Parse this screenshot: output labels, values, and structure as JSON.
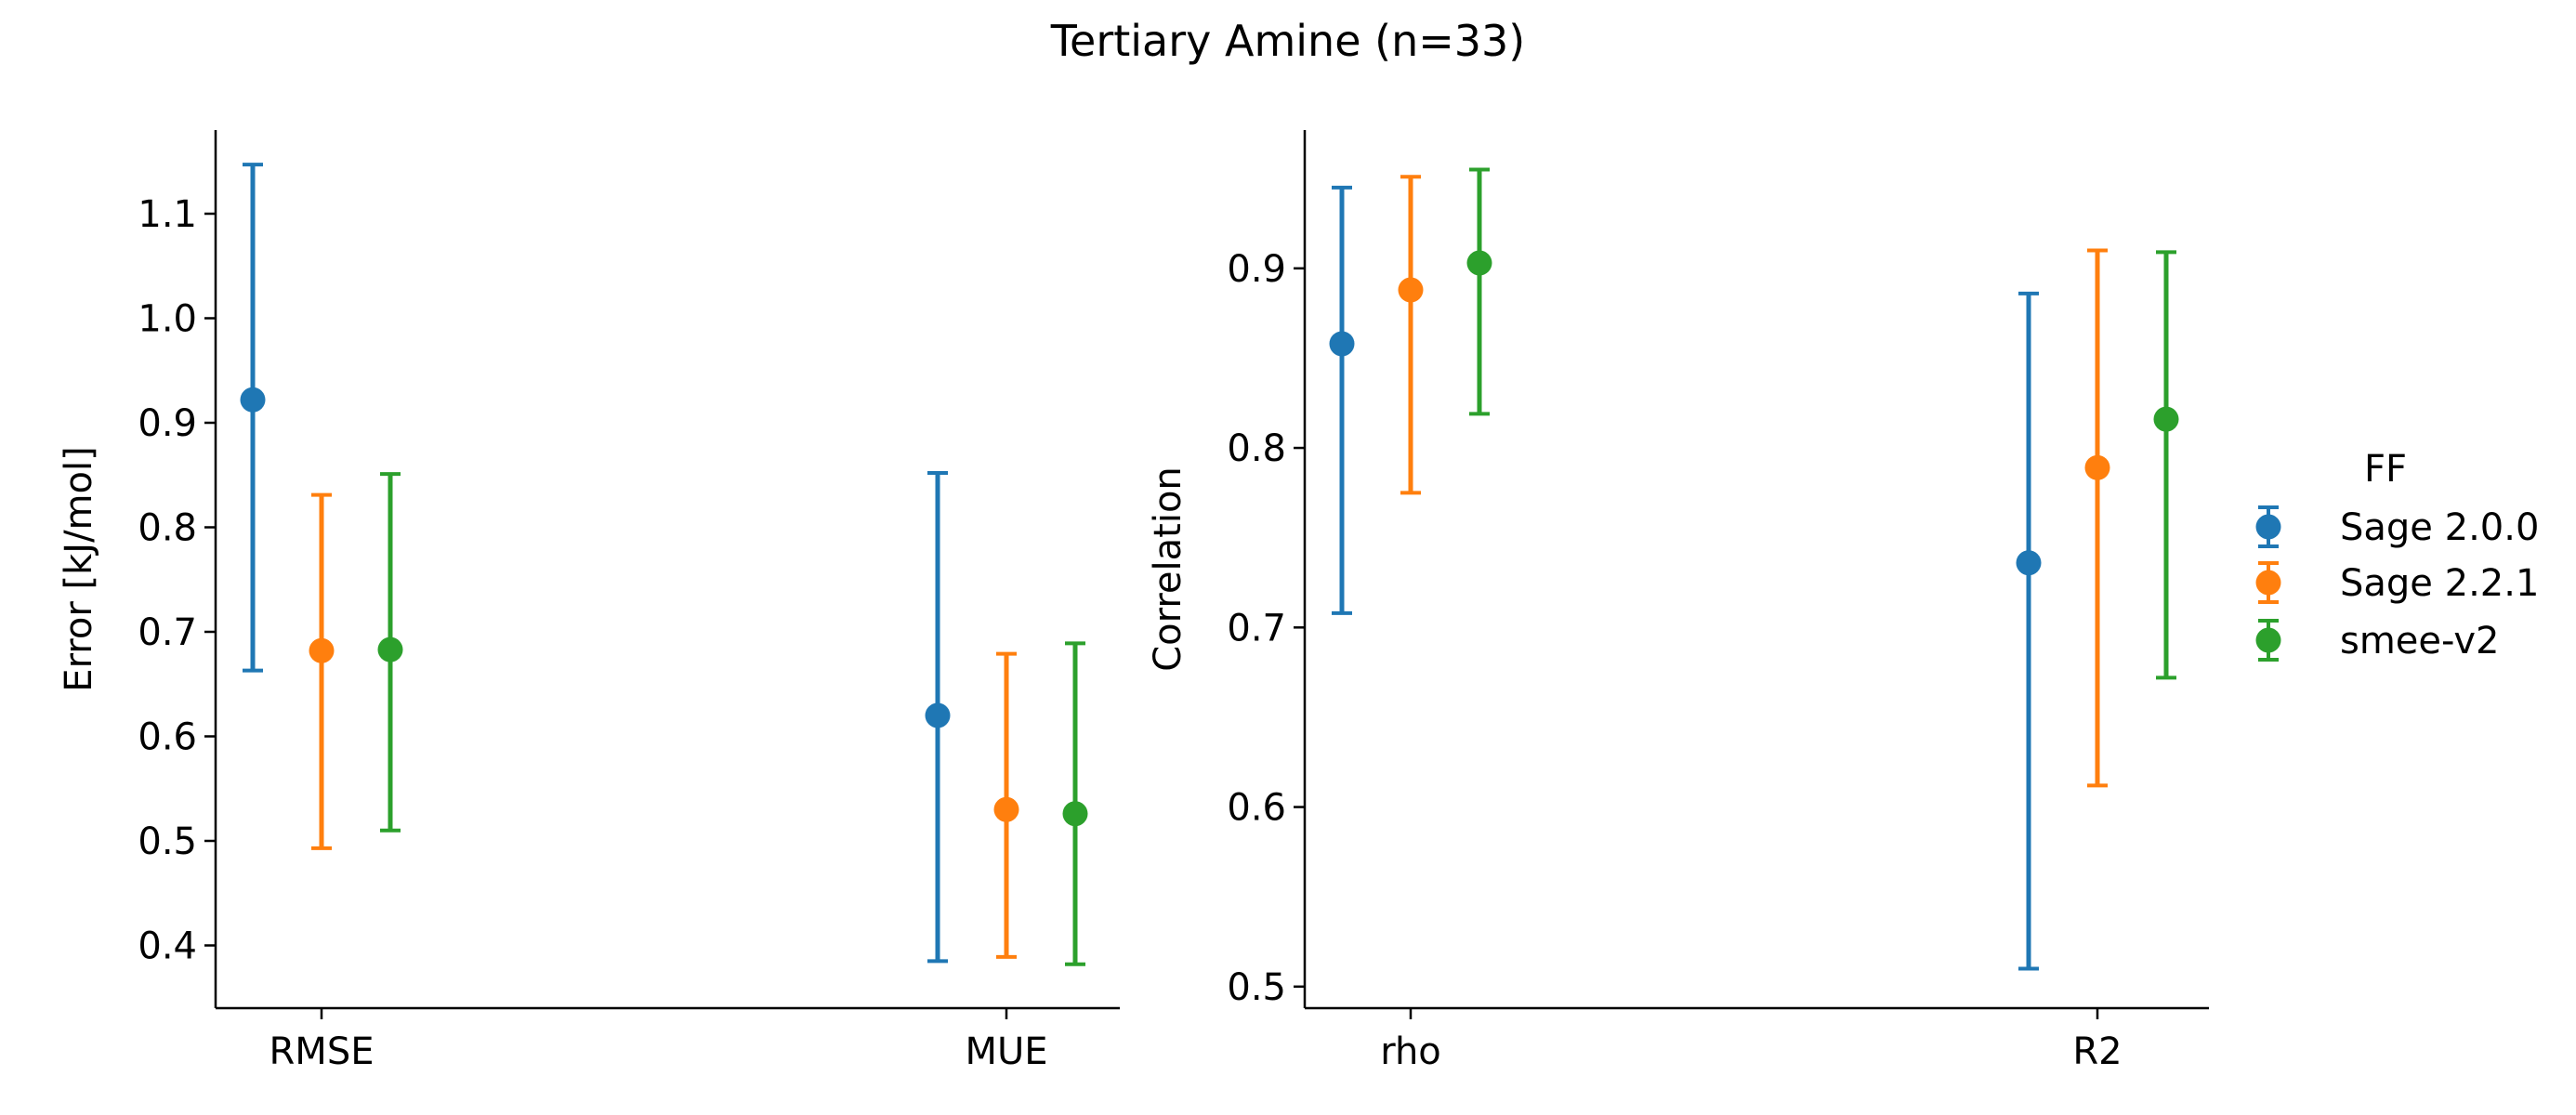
{
  "figure": {
    "title": "Tertiary Amine (n=33)"
  },
  "chart_data": [
    {
      "type": "scatter",
      "subtype": "pointplot-with-errorbars",
      "title": "",
      "xlabel": "",
      "ylabel": "Error [kJ/mol]",
      "categories": [
        "RMSE",
        "MUE"
      ],
      "ylim": [
        0.34,
        1.18
      ],
      "yticks": [
        0.4,
        0.5,
        0.6,
        0.7,
        0.8,
        0.9,
        1.0,
        1.1
      ],
      "ytick_labels": [
        "0.4",
        "0.5",
        "0.6",
        "0.7",
        "0.8",
        "0.9",
        "1.0",
        "1.1"
      ],
      "grid": false,
      "series": [
        {
          "name": "Sage 2.0.0",
          "color": "#1f77b4",
          "values": [
            0.922,
            0.62
          ],
          "lower": [
            0.663,
            0.385
          ],
          "upper": [
            1.147,
            0.852
          ]
        },
        {
          "name": "Sage 2.2.1",
          "color": "#ff7f0e",
          "values": [
            0.682,
            0.53
          ],
          "lower": [
            0.493,
            0.389
          ],
          "upper": [
            0.831,
            0.679
          ]
        },
        {
          "name": "smee-v2",
          "color": "#2ca02c",
          "values": [
            0.683,
            0.526
          ],
          "lower": [
            0.51,
            0.382
          ],
          "upper": [
            0.851,
            0.689
          ]
        }
      ]
    },
    {
      "type": "scatter",
      "subtype": "pointplot-with-errorbars",
      "title": "",
      "xlabel": "",
      "ylabel": "Correlation",
      "categories": [
        "rho",
        "R2"
      ],
      "ylim": [
        0.488,
        0.977
      ],
      "yticks": [
        0.5,
        0.6,
        0.7,
        0.8,
        0.9
      ],
      "ytick_labels": [
        "0.5",
        "0.6",
        "0.7",
        "0.8",
        "0.9"
      ],
      "grid": false,
      "series": [
        {
          "name": "Sage 2.0.0",
          "color": "#1f77b4",
          "values": [
            0.858,
            0.736
          ],
          "lower": [
            0.708,
            0.51
          ],
          "upper": [
            0.945,
            0.886
          ]
        },
        {
          "name": "Sage 2.2.1",
          "color": "#ff7f0e",
          "values": [
            0.888,
            0.789
          ],
          "lower": [
            0.775,
            0.612
          ],
          "upper": [
            0.951,
            0.91
          ]
        },
        {
          "name": "smee-v2",
          "color": "#2ca02c",
          "values": [
            0.903,
            0.816
          ],
          "lower": [
            0.819,
            0.672
          ],
          "upper": [
            0.955,
            0.909
          ]
        }
      ]
    }
  ],
  "legend": {
    "title": "FF",
    "placement": "right",
    "entries": [
      {
        "label": "Sage 2.0.0",
        "color": "#1f77b4"
      },
      {
        "label": "Sage 2.2.1",
        "color": "#ff7f0e"
      },
      {
        "label": "smee-v2",
        "color": "#2ca02c"
      }
    ]
  }
}
